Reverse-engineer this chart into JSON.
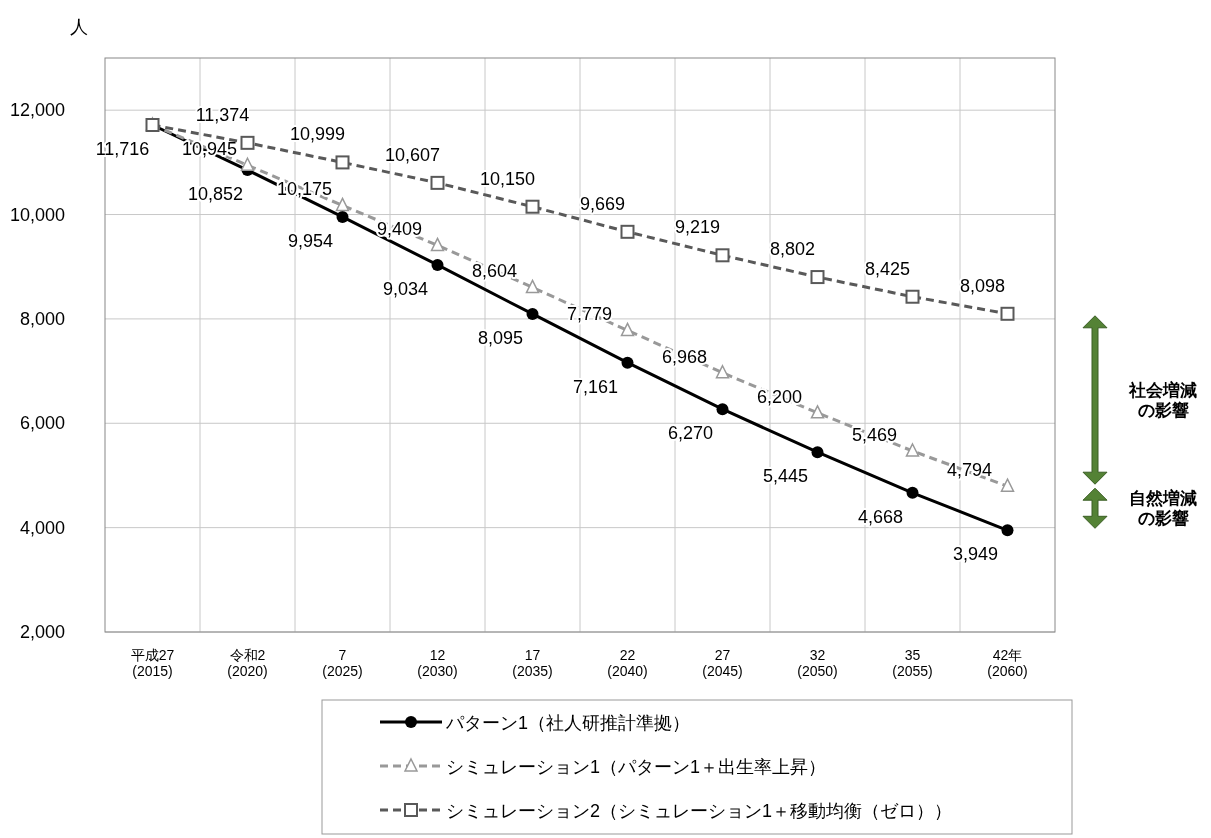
{
  "chart_data": {
    "type": "line",
    "ylabel": "人",
    "categories": [
      "平成27\n(2015)",
      "令和2\n(2020)",
      "7\n(2025)",
      "12\n(2030)",
      "17\n(2035)",
      "22\n(2040)",
      "27\n(2045)",
      "32\n(2050)",
      "35\n(2055)",
      "42年\n(2060)"
    ],
    "series": [
      {
        "name": "パターン1（社人研推計準拠）",
        "color": "#000000",
        "marker": "circle",
        "line_style": "solid",
        "values": [
          11716,
          10852,
          9954,
          9034,
          8095,
          7161,
          6270,
          5445,
          4668,
          3949
        ],
        "value_labels": [
          "11,716",
          "10,852",
          "9,954",
          "9,034",
          "8,095",
          "7,161",
          "6,270",
          "5,445",
          "4,668",
          "3,949"
        ]
      },
      {
        "name": "シミュレーション1（パターン1＋出生率上昇）",
        "color": "#999999",
        "marker": "triangle",
        "line_style": "dashed",
        "values": [
          11716,
          10945,
          10175,
          9409,
          8604,
          7779,
          6968,
          6200,
          5469,
          4794
        ],
        "value_labels": [
          null,
          "10,945",
          "10,175",
          "9,409",
          "8,604",
          "7,779",
          "6,968",
          "6,200",
          "5,469",
          "4,794"
        ]
      },
      {
        "name": "シミュレーション2（シミュレーション1＋移動均衡（ゼロ））",
        "color": "#595959",
        "marker": "square",
        "line_style": "dashed",
        "values": [
          11716,
          11374,
          10999,
          10607,
          10150,
          9669,
          9219,
          8802,
          8425,
          8098
        ],
        "value_labels": [
          null,
          "11,374",
          "10,999",
          "10,607",
          "10,150",
          "9,669",
          "9,219",
          "8,802",
          "8,425",
          "8,098"
        ]
      }
    ],
    "ylim": [
      2000,
      13000
    ],
    "yticks": [
      {
        "value": 2000,
        "label": "2,000"
      },
      {
        "value": 4000,
        "label": "4,000"
      },
      {
        "value": 6000,
        "label": "6,000"
      },
      {
        "value": 8000,
        "label": "8,000"
      },
      {
        "value": 10000,
        "label": "10,000"
      },
      {
        "value": 12000,
        "label": "12,000"
      }
    ],
    "grid": true,
    "legend": "bottom",
    "annotations": [
      "社会増減の影響",
      "自然増減の影響"
    ]
  }
}
